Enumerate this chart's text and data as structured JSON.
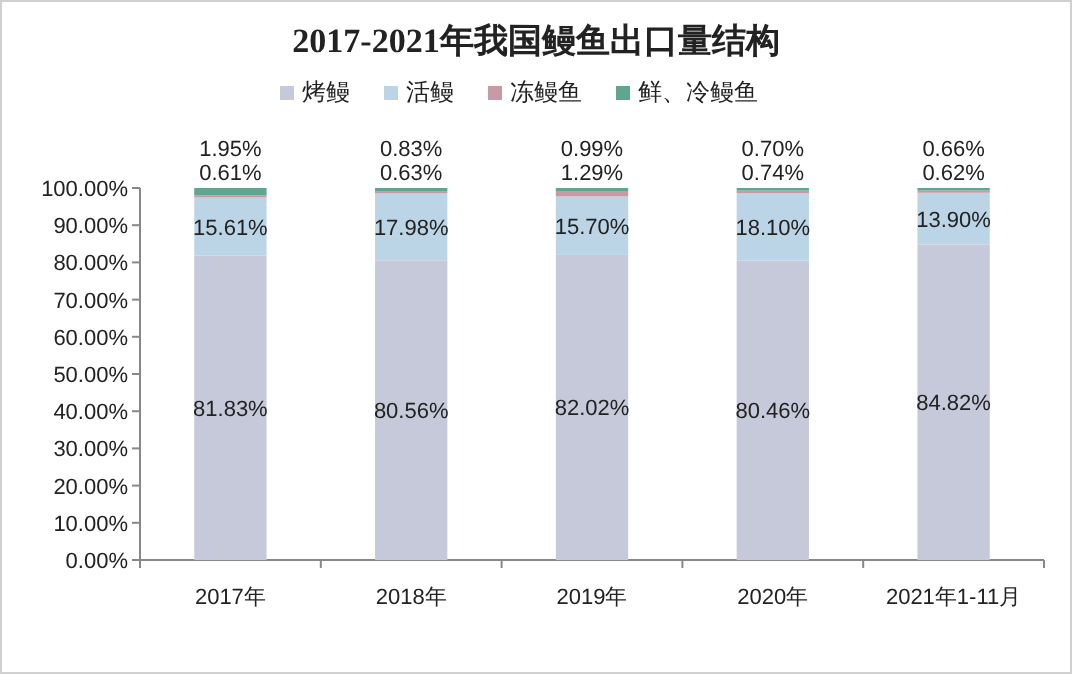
{
  "chart_data": {
    "type": "bar",
    "stacked": true,
    "title": "2017-2021年我国鳗鱼出口量结构",
    "categories": [
      "2017年",
      "2018年",
      "2019年",
      "2020年",
      "2021年1-11月"
    ],
    "series": [
      {
        "name": "烤鳗",
        "color": "#c6c9da",
        "values": [
          81.83,
          80.56,
          82.02,
          80.46,
          84.82
        ],
        "value_labels": [
          "81.83%",
          "80.56%",
          "82.02%",
          "80.46%",
          "84.82%"
        ]
      },
      {
        "name": "活鳗",
        "color": "#bcd5e6",
        "values": [
          15.61,
          17.98,
          15.7,
          18.1,
          13.9
        ],
        "value_labels": [
          "15.61%",
          "17.98%",
          "15.70%",
          "18.10%",
          "13.90%"
        ]
      },
      {
        "name": "冻鳗鱼",
        "color": "#c99aa6",
        "values": [
          0.61,
          0.63,
          1.29,
          0.74,
          0.62
        ],
        "value_labels": [
          "0.61%",
          "0.63%",
          "1.29%",
          "0.74%",
          "0.62%"
        ]
      },
      {
        "name": "鲜、冷鳗鱼",
        "color": "#5fa58f",
        "values": [
          1.95,
          0.83,
          0.99,
          0.7,
          0.66
        ],
        "value_labels": [
          "1.95%",
          "0.83%",
          "0.99%",
          "0.70%",
          "0.66%"
        ]
      }
    ],
    "ylim": [
      0,
      100
    ],
    "yticks": [
      {
        "value": 0,
        "label": "0.00%"
      },
      {
        "value": 10,
        "label": "10.00%"
      },
      {
        "value": 20,
        "label": "20.00%"
      },
      {
        "value": 30,
        "label": "30.00%"
      },
      {
        "value": 40,
        "label": "40.00%"
      },
      {
        "value": 50,
        "label": "50.00%"
      },
      {
        "value": 60,
        "label": "60.00%"
      },
      {
        "value": 70,
        "label": "70.00%"
      },
      {
        "value": 80,
        "label": "80.00%"
      },
      {
        "value": 90,
        "label": "90.00%"
      },
      {
        "value": 100,
        "label": "100.00%"
      }
    ],
    "legend": "top",
    "grid": false
  }
}
